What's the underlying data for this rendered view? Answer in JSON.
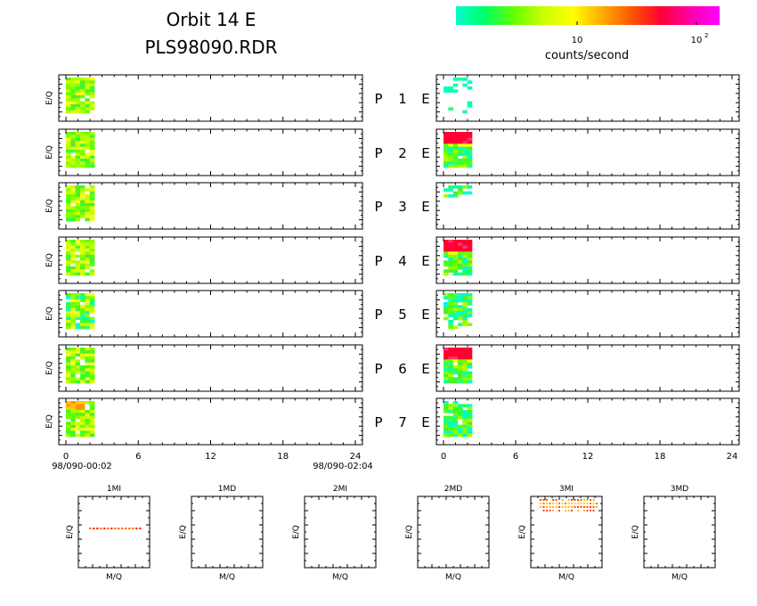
{
  "title": {
    "line1": "Orbit 14 E",
    "line2": "PLS98090.RDR"
  },
  "colorbar": {
    "label": "counts/second",
    "tick_10": "10",
    "tick_100_base": "10",
    "tick_100_exp": "2",
    "colors": [
      "#00ffcc",
      "#00ff66",
      "#66ff00",
      "#ccff00",
      "#ffff00",
      "#ffaa00",
      "#ff5500",
      "#ff0033",
      "#ff00aa",
      "#ff00ff"
    ]
  },
  "time_axis": {
    "ticks": [
      "0",
      "6",
      "12",
      "18",
      "24"
    ],
    "start_label": "98/090-00:02",
    "end_label": "98/090-02:04"
  },
  "panel_ylabel": "E/Q",
  "panel_labels": [
    {
      "p": "P",
      "n": "1",
      "e": "E"
    },
    {
      "p": "P",
      "n": "2",
      "e": "E"
    },
    {
      "p": "P",
      "n": "3",
      "e": "E"
    },
    {
      "p": "P",
      "n": "4",
      "e": "E"
    },
    {
      "p": "P",
      "n": "5",
      "e": "E"
    },
    {
      "p": "P",
      "n": "6",
      "e": "E"
    },
    {
      "p": "P",
      "n": "7",
      "e": "E"
    }
  ],
  "mass_panels": {
    "xlabel": "M/Q",
    "ylabel": "E/Q",
    "titles": [
      "1MI",
      "1MD",
      "2MI",
      "2MD",
      "3MI",
      "3MD"
    ]
  },
  "chart_data": {
    "type": "heatmap",
    "x_axis": {
      "range": [
        0,
        24
      ],
      "unit": "hours"
    },
    "time_range": [
      "98/090-00:02",
      "98/090-02:04"
    ],
    "data_extent_hours": [
      0,
      2
    ],
    "color_scale": {
      "label": "counts/second",
      "scale": "log",
      "range": [
        3,
        150
      ]
    },
    "left_column": [
      {
        "panel": 1,
        "dominant": "green-yellow"
      },
      {
        "panel": 2,
        "dominant": "green-yellow"
      },
      {
        "panel": 3,
        "dominant": "green-yellow"
      },
      {
        "panel": 4,
        "dominant": "green-yellow"
      },
      {
        "panel": 5,
        "dominant": "green-cyan"
      },
      {
        "panel": 6,
        "dominant": "green-yellow"
      },
      {
        "panel": 7,
        "dominant": "orange-yellow-green"
      }
    ],
    "right_column": [
      {
        "panel": 1,
        "dominant": "cyan-sparse"
      },
      {
        "panel": 2,
        "dominant": "red-top-green-bottom"
      },
      {
        "panel": 3,
        "dominant": "cyan-green-sparse"
      },
      {
        "panel": 4,
        "dominant": "red-top-green-bottom"
      },
      {
        "panel": 5,
        "dominant": "cyan-green"
      },
      {
        "panel": 6,
        "dominant": "red-top-green-bottom"
      },
      {
        "panel": 7,
        "dominant": "green-cyan"
      }
    ],
    "mass_spectra": [
      {
        "name": "1MI",
        "content": "single orange-red dotted line"
      },
      {
        "name": "1MD",
        "content": "empty"
      },
      {
        "name": "2MI",
        "content": "empty"
      },
      {
        "name": "2MD",
        "content": "empty"
      },
      {
        "name": "3MI",
        "content": "yellow-orange dotted bands at top"
      },
      {
        "name": "3MD",
        "content": "empty"
      }
    ]
  }
}
